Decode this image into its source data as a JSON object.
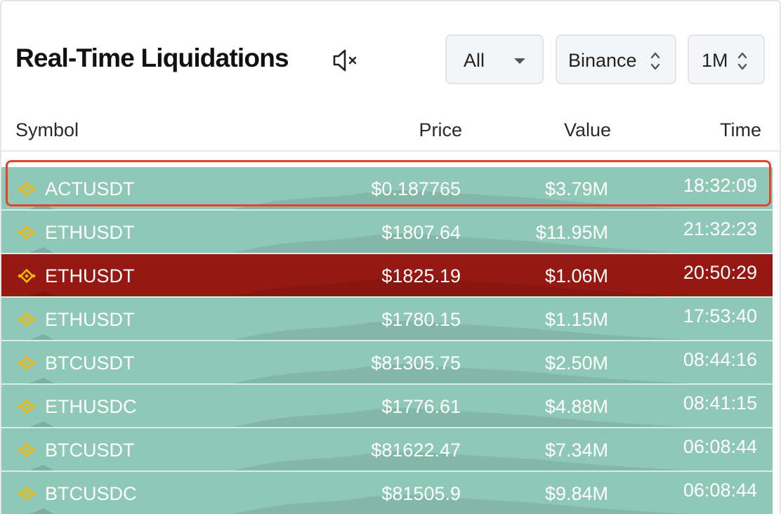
{
  "header": {
    "title": "Real-Time Liquidations",
    "mute_icon": "volume-mute-icon"
  },
  "filters": {
    "side": {
      "selected": "All"
    },
    "exchange": {
      "selected": "Binance"
    },
    "timeframe": {
      "selected": "1M"
    }
  },
  "table": {
    "columns": {
      "symbol": "Symbol",
      "price": "Price",
      "value": "Value",
      "time": "Time"
    },
    "rows": [
      {
        "symbol": "ACTUSDT",
        "price": "$0.187765",
        "value": "$3.79M",
        "time": "18:32:09",
        "side": "long"
      },
      {
        "symbol": "ETHUSDT",
        "price": "$1807.64",
        "value": "$11.95M",
        "time": "21:32:23",
        "side": "long"
      },
      {
        "symbol": "ETHUSDT",
        "price": "$1825.19",
        "value": "$1.06M",
        "time": "20:50:29",
        "side": "short"
      },
      {
        "symbol": "ETHUSDT",
        "price": "$1780.15",
        "value": "$1.15M",
        "time": "17:53:40",
        "side": "long"
      },
      {
        "symbol": "BTCUSDT",
        "price": "$81305.75",
        "value": "$2.50M",
        "time": "08:44:16",
        "side": "long"
      },
      {
        "symbol": "ETHUSDC",
        "price": "$1776.61",
        "value": "$4.88M",
        "time": "08:41:15",
        "side": "long"
      },
      {
        "symbol": "BTCUSDT",
        "price": "$81622.47",
        "value": "$7.34M",
        "time": "06:08:44",
        "side": "long"
      },
      {
        "symbol": "BTCUSDC",
        "price": "$81505.9",
        "value": "$9.84M",
        "time": "06:08:44",
        "side": "long"
      }
    ],
    "highlighted_row": 0
  },
  "colors": {
    "long_row": "#8fc8b7",
    "short_row": "#951813",
    "exchange_icon": "#f0b90b",
    "highlight_border": "#e0452f"
  },
  "icons": {
    "exchange": "binance-icon",
    "dropdown": "chevron-down-icon",
    "sort": "up-down-chevron-icon"
  }
}
